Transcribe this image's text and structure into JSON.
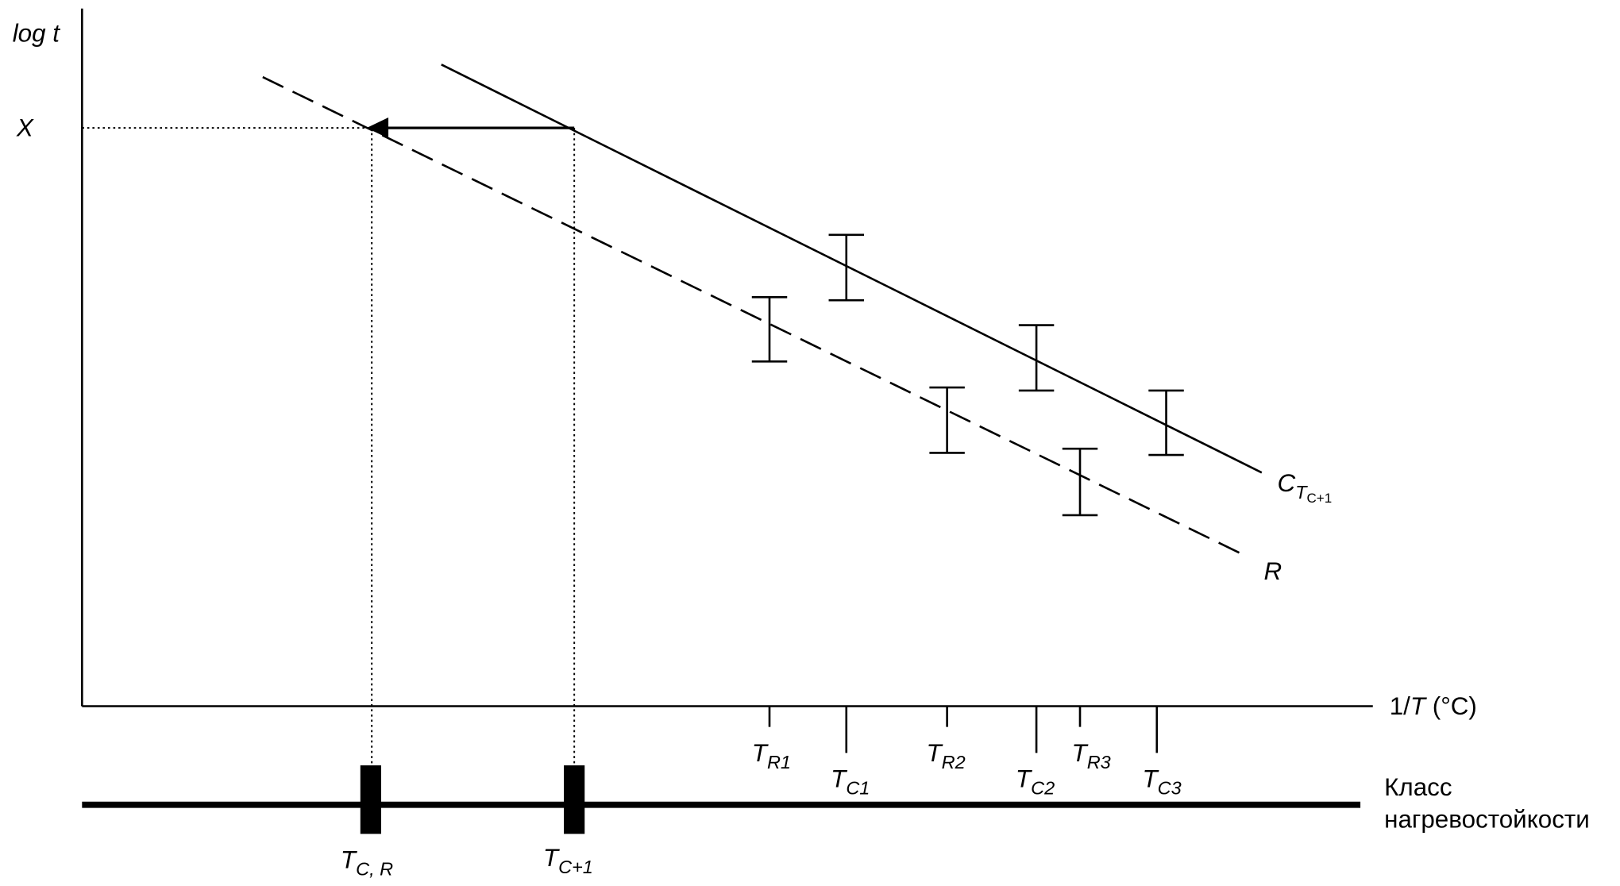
{
  "axes": {
    "y_label": "log t",
    "y_mark": "X",
    "x_label": {
      "prefix": "1/",
      "var": "T",
      "unit": " (°C)"
    }
  },
  "lines": [
    {
      "main": "C",
      "sub": "T",
      "subsub": "C+1"
    },
    {
      "main": "R"
    }
  ],
  "x_ticks": [
    {
      "main": "T",
      "sub": "R1"
    },
    {
      "main": "T",
      "sub": "C1"
    },
    {
      "main": "T",
      "sub": "R2"
    },
    {
      "main": "T",
      "sub": "C2"
    },
    {
      "main": "T",
      "sub": "R3"
    },
    {
      "main": "T",
      "sub": "C3"
    }
  ],
  "class_scale": {
    "label_line1": "Класс",
    "label_line2": "нагревостойкости",
    "marks": [
      {
        "main": "T",
        "sub": "C, R"
      },
      {
        "main": "T",
        "sub": "C+1"
      }
    ]
  }
}
